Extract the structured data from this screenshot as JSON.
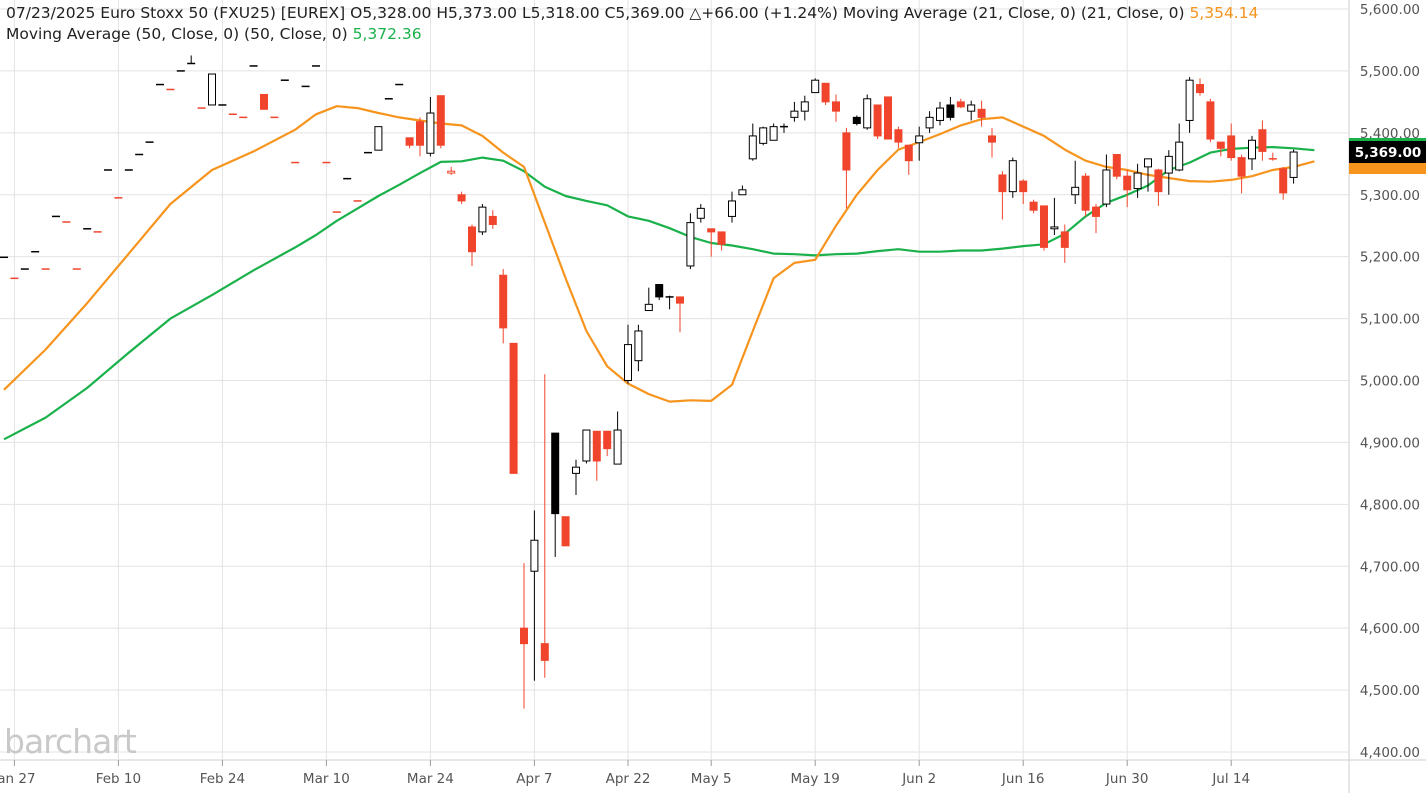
{
  "header": {
    "date": "07/23/2025",
    "instrument": "Euro Stoxx 50 (FXU25) [EUREX]",
    "open_label": "O",
    "open": "5,328.00",
    "high_label": "H",
    "high": "5,373.00",
    "low_label": "L",
    "low": "5,318.00",
    "close_label": "C",
    "close": "5,369.00",
    "change": "△+66.00 (+1.24%)",
    "ma21_label": "Moving Average (21, Close, 0)  (21, Close, 0)",
    "ma21_value": "5,354.14",
    "ma50_label": "Moving Average (50, Close, 0)  (50, Close, 0)",
    "ma50_value": "5,372.36"
  },
  "watermark": "barchart",
  "colors": {
    "up": "#000000",
    "down": "#f0452c",
    "ma21": "#f7941d",
    "ma50": "#1ab14b",
    "grid": "#e3e3e3"
  },
  "chart_data": {
    "type": "candlestick",
    "ylim": [
      4400,
      5600
    ],
    "y_ticks": [
      "4,400.00",
      "4,500.00",
      "4,600.00",
      "4,700.00",
      "4,800.00",
      "4,900.00",
      "5,000.00",
      "5,100.00",
      "5,200.00",
      "5,300.00",
      "5,400.00",
      "5,500.00",
      "5,600.00"
    ],
    "x_ticks": [
      {
        "label": "Jan 27",
        "i": 1
      },
      {
        "label": "Feb 10",
        "i": 11
      },
      {
        "label": "Feb 24",
        "i": 21
      },
      {
        "label": "Mar 10",
        "i": 31
      },
      {
        "label": "Mar 24",
        "i": 41
      },
      {
        "label": "Apr 7",
        "i": 51
      },
      {
        "label": "Apr 22",
        "i": 60
      },
      {
        "label": "May 5",
        "i": 68
      },
      {
        "label": "May 19",
        "i": 78
      },
      {
        "label": "Jun 2",
        "i": 88
      },
      {
        "label": "Jun 16",
        "i": 98
      },
      {
        "label": "Jun 30",
        "i": 108
      },
      {
        "label": "Jul 14",
        "i": 118
      }
    ],
    "last_price_label": "5,369.00",
    "candles": [
      {
        "o": 5199,
        "h": 5199,
        "l": 5199,
        "c": 5199,
        "d": "up"
      },
      {
        "o": 5165,
        "h": 5165,
        "l": 5165,
        "c": 5165,
        "d": "down"
      },
      {
        "o": 5180,
        "h": 5180,
        "l": 5180,
        "c": 5180,
        "d": "up"
      },
      {
        "o": 5208,
        "h": 5208,
        "l": 5208,
        "c": 5208,
        "d": "up"
      },
      {
        "o": 5180,
        "h": 5180,
        "l": 5180,
        "c": 5180,
        "d": "down"
      },
      {
        "o": 5265,
        "h": 5265,
        "l": 5265,
        "c": 5265,
        "d": "up"
      },
      {
        "o": 5256,
        "h": 5256,
        "l": 5256,
        "c": 5256,
        "d": "down"
      },
      {
        "o": 5180,
        "h": 5180,
        "l": 5180,
        "c": 5180,
        "d": "down"
      },
      {
        "o": 5245,
        "h": 5245,
        "l": 5245,
        "c": 5245,
        "d": "up"
      },
      {
        "o": 5240,
        "h": 5240,
        "l": 5240,
        "c": 5240,
        "d": "down"
      },
      {
        "o": 5340,
        "h": 5340,
        "l": 5340,
        "c": 5340,
        "d": "up"
      },
      {
        "o": 5295,
        "h": 5295,
        "l": 5295,
        "c": 5295,
        "d": "down"
      },
      {
        "o": 5340,
        "h": 5340,
        "l": 5340,
        "c": 5340,
        "d": "up"
      },
      {
        "o": 5365,
        "h": 5365,
        "l": 5365,
        "c": 5365,
        "d": "up"
      },
      {
        "o": 5385,
        "h": 5385,
        "l": 5385,
        "c": 5385,
        "d": "up"
      },
      {
        "o": 5478,
        "h": 5478,
        "l": 5478,
        "c": 5478,
        "d": "up"
      },
      {
        "o": 5470,
        "h": 5470,
        "l": 5470,
        "c": 5470,
        "d": "down"
      },
      {
        "o": 5500,
        "h": 5500,
        "l": 5500,
        "c": 5500,
        "d": "up"
      },
      {
        "o": 5512,
        "h": 5525,
        "l": 5512,
        "c": 5512,
        "d": "up"
      },
      {
        "o": 5440,
        "h": 5440,
        "l": 5440,
        "c": 5440,
        "d": "down"
      },
      {
        "o": 5445,
        "h": 5495,
        "l": 5445,
        "c": 5495,
        "d": "up"
      },
      {
        "o": 5445,
        "h": 5445,
        "l": 5445,
        "c": 5445,
        "d": "up"
      },
      {
        "o": 5430,
        "h": 5430,
        "l": 5430,
        "c": 5430,
        "d": "down"
      },
      {
        "o": 5425,
        "h": 5425,
        "l": 5425,
        "c": 5425,
        "d": "down"
      },
      {
        "o": 5508,
        "h": 5508,
        "l": 5508,
        "c": 5508,
        "d": "up"
      },
      {
        "o": 5462,
        "h": 5462,
        "l": 5438,
        "c": 5438,
        "d": "down"
      },
      {
        "o": 5425,
        "h": 5425,
        "l": 5425,
        "c": 5425,
        "d": "down"
      },
      {
        "o": 5485,
        "h": 5485,
        "l": 5485,
        "c": 5485,
        "d": "up"
      },
      {
        "o": 5352,
        "h": 5352,
        "l": 5352,
        "c": 5352,
        "d": "down"
      },
      {
        "o": 5475,
        "h": 5475,
        "l": 5475,
        "c": 5475,
        "d": "up"
      },
      {
        "o": 5508,
        "h": 5508,
        "l": 5508,
        "c": 5508,
        "d": "up"
      },
      {
        "o": 5352,
        "h": 5352,
        "l": 5352,
        "c": 5352,
        "d": "down"
      },
      {
        "o": 5272,
        "h": 5272,
        "l": 5272,
        "c": 5272,
        "d": "down"
      },
      {
        "o": 5326,
        "h": 5326,
        "l": 5326,
        "c": 5326,
        "d": "up"
      },
      {
        "o": 5290,
        "h": 5290,
        "l": 5290,
        "c": 5290,
        "d": "down"
      },
      {
        "o": 5368,
        "h": 5368,
        "l": 5368,
        "c": 5368,
        "d": "up"
      },
      {
        "o": 5372,
        "h": 5410,
        "l": 5372,
        "c": 5410,
        "d": "up"
      },
      {
        "o": 5455,
        "h": 5455,
        "l": 5455,
        "c": 5455,
        "d": "up"
      },
      {
        "o": 5478,
        "h": 5478,
        "l": 5478,
        "c": 5478,
        "d": "up"
      },
      {
        "o": 5392,
        "h": 5392,
        "l": 5375,
        "c": 5380,
        "d": "down"
      },
      {
        "o": 5418,
        "h": 5425,
        "l": 5362,
        "c": 5380,
        "d": "down"
      },
      {
        "o": 5367,
        "h": 5458,
        "l": 5362,
        "c": 5432,
        "d": "up"
      },
      {
        "o": 5460,
        "h": 5460,
        "l": 5375,
        "c": 5380,
        "d": "down"
      },
      {
        "o": 5335,
        "h": 5345,
        "l": 5332,
        "c": 5338,
        "d": "down"
      },
      {
        "o": 5300,
        "h": 5305,
        "l": 5285,
        "c": 5290,
        "d": "down"
      },
      {
        "o": 5248,
        "h": 5252,
        "l": 5185,
        "c": 5208,
        "d": "down"
      },
      {
        "o": 5240,
        "h": 5285,
        "l": 5235,
        "c": 5280,
        "d": "up"
      },
      {
        "o": 5265,
        "h": 5275,
        "l": 5245,
        "c": 5252,
        "d": "down"
      },
      {
        "o": 5170,
        "h": 5180,
        "l": 5060,
        "c": 5085,
        "d": "down"
      },
      {
        "o": 5060,
        "h": 5060,
        "l": 4850,
        "c": 4850,
        "d": "down"
      },
      {
        "o": 4600,
        "h": 4705,
        "l": 4470,
        "c": 4575,
        "d": "down"
      },
      {
        "o": 4692,
        "h": 4790,
        "l": 4515,
        "c": 4742,
        "d": "up"
      },
      {
        "o": 4575,
        "h": 5010,
        "l": 4520,
        "c": 4548,
        "d": "down"
      },
      {
        "o": 4915,
        "h": 4915,
        "l": 4715,
        "c": 4785,
        "d": "up"
      },
      {
        "o": 4780,
        "h": 4780,
        "l": 4733,
        "c": 4733,
        "d": "down"
      },
      {
        "o": 4850,
        "h": 4872,
        "l": 4815,
        "c": 4860,
        "d": "up"
      },
      {
        "o": 4870,
        "h": 4920,
        "l": 4866,
        "c": 4920,
        "d": "up"
      },
      {
        "o": 4918,
        "h": 4918,
        "l": 4838,
        "c": 4870,
        "d": "down"
      },
      {
        "o": 4918,
        "h": 4918,
        "l": 4878,
        "c": 4890,
        "d": "down"
      },
      {
        "o": 4865,
        "h": 4950,
        "l": 4865,
        "c": 4920,
        "d": "up"
      },
      {
        "o": 5000,
        "h": 5090,
        "l": 4995,
        "c": 5058,
        "d": "up"
      },
      {
        "o": 5032,
        "h": 5090,
        "l": 5015,
        "c": 5080,
        "d": "up"
      },
      {
        "o": 5113,
        "h": 5150,
        "l": 5113,
        "c": 5123,
        "d": "up"
      },
      {
        "o": 5155,
        "h": 5155,
        "l": 5130,
        "c": 5135,
        "d": "up"
      },
      {
        "o": 5135,
        "h": 5137,
        "l": 5115,
        "c": 5135,
        "d": "up"
      },
      {
        "o": 5135,
        "h": 5135,
        "l": 5078,
        "c": 5125,
        "d": "down"
      },
      {
        "o": 5185,
        "h": 5270,
        "l": 5180,
        "c": 5255,
        "d": "up"
      },
      {
        "o": 5262,
        "h": 5285,
        "l": 5255,
        "c": 5278,
        "d": "up"
      },
      {
        "o": 5245,
        "h": 5245,
        "l": 5200,
        "c": 5240,
        "d": "down"
      },
      {
        "o": 5240,
        "h": 5240,
        "l": 5210,
        "c": 5220,
        "d": "down"
      },
      {
        "o": 5265,
        "h": 5305,
        "l": 5255,
        "c": 5290,
        "d": "up"
      },
      {
        "o": 5300,
        "h": 5315,
        "l": 5300,
        "c": 5308,
        "d": "up"
      },
      {
        "o": 5358,
        "h": 5415,
        "l": 5355,
        "c": 5395,
        "d": "up"
      },
      {
        "o": 5383,
        "h": 5410,
        "l": 5380,
        "c": 5408,
        "d": "up"
      },
      {
        "o": 5388,
        "h": 5415,
        "l": 5388,
        "c": 5410,
        "d": "up"
      },
      {
        "o": 5410,
        "h": 5415,
        "l": 5400,
        "c": 5410,
        "d": "up"
      },
      {
        "o": 5425,
        "h": 5450,
        "l": 5418,
        "c": 5435,
        "d": "up"
      },
      {
        "o": 5435,
        "h": 5460,
        "l": 5420,
        "c": 5450,
        "d": "up"
      },
      {
        "o": 5465,
        "h": 5488,
        "l": 5465,
        "c": 5485,
        "d": "up"
      },
      {
        "o": 5480,
        "h": 5480,
        "l": 5445,
        "c": 5450,
        "d": "down"
      },
      {
        "o": 5450,
        "h": 5462,
        "l": 5418,
        "c": 5435,
        "d": "down"
      },
      {
        "o": 5400,
        "h": 5408,
        "l": 5278,
        "c": 5340,
        "d": "down"
      },
      {
        "o": 5425,
        "h": 5428,
        "l": 5412,
        "c": 5415,
        "d": "up"
      },
      {
        "o": 5408,
        "h": 5462,
        "l": 5405,
        "c": 5455,
        "d": "up"
      },
      {
        "o": 5445,
        "h": 5445,
        "l": 5390,
        "c": 5395,
        "d": "down"
      },
      {
        "o": 5458,
        "h": 5458,
        "l": 5390,
        "c": 5390,
        "d": "down"
      },
      {
        "o": 5405,
        "h": 5410,
        "l": 5375,
        "c": 5385,
        "d": "down"
      },
      {
        "o": 5380,
        "h": 5380,
        "l": 5332,
        "c": 5355,
        "d": "down"
      },
      {
        "o": 5384,
        "h": 5410,
        "l": 5355,
        "c": 5395,
        "d": "up"
      },
      {
        "o": 5408,
        "h": 5435,
        "l": 5400,
        "c": 5425,
        "d": "up"
      },
      {
        "o": 5420,
        "h": 5450,
        "l": 5412,
        "c": 5440,
        "d": "up"
      },
      {
        "o": 5445,
        "h": 5458,
        "l": 5420,
        "c": 5425,
        "d": "up"
      },
      {
        "o": 5450,
        "h": 5455,
        "l": 5440,
        "c": 5442,
        "d": "down"
      },
      {
        "o": 5435,
        "h": 5452,
        "l": 5420,
        "c": 5445,
        "d": "up"
      },
      {
        "o": 5438,
        "h": 5452,
        "l": 5410,
        "c": 5425,
        "d": "down"
      },
      {
        "o": 5395,
        "h": 5408,
        "l": 5360,
        "c": 5385,
        "d": "down"
      },
      {
        "o": 5332,
        "h": 5338,
        "l": 5260,
        "c": 5305,
        "d": "down"
      },
      {
        "o": 5305,
        "h": 5360,
        "l": 5295,
        "c": 5355,
        "d": "up"
      },
      {
        "o": 5322,
        "h": 5325,
        "l": 5285,
        "c": 5305,
        "d": "down"
      },
      {
        "o": 5288,
        "h": 5292,
        "l": 5270,
        "c": 5275,
        "d": "down"
      },
      {
        "o": 5282,
        "h": 5282,
        "l": 5210,
        "c": 5215,
        "d": "down"
      },
      {
        "o": 5245,
        "h": 5295,
        "l": 5235,
        "c": 5248,
        "d": "up"
      },
      {
        "o": 5240,
        "h": 5252,
        "l": 5190,
        "c": 5215,
        "d": "down"
      },
      {
        "o": 5300,
        "h": 5355,
        "l": 5285,
        "c": 5312,
        "d": "up"
      },
      {
        "o": 5330,
        "h": 5335,
        "l": 5265,
        "c": 5275,
        "d": "down"
      },
      {
        "o": 5280,
        "h": 5285,
        "l": 5238,
        "c": 5265,
        "d": "down"
      },
      {
        "o": 5285,
        "h": 5365,
        "l": 5280,
        "c": 5340,
        "d": "up"
      },
      {
        "o": 5365,
        "h": 5365,
        "l": 5325,
        "c": 5330,
        "d": "down"
      },
      {
        "o": 5330,
        "h": 5340,
        "l": 5280,
        "c": 5308,
        "d": "down"
      },
      {
        "o": 5310,
        "h": 5350,
        "l": 5295,
        "c": 5335,
        "d": "up"
      },
      {
        "o": 5345,
        "h": 5358,
        "l": 5305,
        "c": 5358,
        "d": "up"
      },
      {
        "o": 5340,
        "h": 5342,
        "l": 5282,
        "c": 5305,
        "d": "down"
      },
      {
        "o": 5335,
        "h": 5372,
        "l": 5300,
        "c": 5362,
        "d": "up"
      },
      {
        "o": 5340,
        "h": 5415,
        "l": 5338,
        "c": 5385,
        "d": "up"
      },
      {
        "o": 5420,
        "h": 5490,
        "l": 5400,
        "c": 5485,
        "d": "up"
      },
      {
        "o": 5478,
        "h": 5488,
        "l": 5460,
        "c": 5465,
        "d": "down"
      },
      {
        "o": 5450,
        "h": 5455,
        "l": 5385,
        "c": 5390,
        "d": "down"
      },
      {
        "o": 5385,
        "h": 5385,
        "l": 5362,
        "c": 5375,
        "d": "down"
      },
      {
        "o": 5395,
        "h": 5415,
        "l": 5355,
        "c": 5360,
        "d": "down"
      },
      {
        "o": 5360,
        "h": 5365,
        "l": 5302,
        "c": 5330,
        "d": "down"
      },
      {
        "o": 5358,
        "h": 5395,
        "l": 5340,
        "c": 5388,
        "d": "up"
      },
      {
        "o": 5405,
        "h": 5420,
        "l": 5355,
        "c": 5370,
        "d": "down"
      },
      {
        "o": 5358,
        "h": 5368,
        "l": 5355,
        "c": 5358,
        "d": "down"
      },
      {
        "o": 5342,
        "h": 5345,
        "l": 5292,
        "c": 5303,
        "d": "down"
      },
      {
        "o": 5328,
        "h": 5373,
        "l": 5318,
        "c": 5369,
        "d": "up"
      }
    ],
    "series": [
      {
        "name": "Moving Average (21, Close, 0)",
        "color": "#f7941d",
        "x": [
          0,
          4,
          8,
          12,
          16,
          20,
          24,
          28,
          30,
          32,
          34,
          36,
          38,
          40,
          42,
          44,
          46,
          48,
          50,
          52,
          54,
          56,
          58,
          60,
          62,
          64,
          66,
          68,
          70,
          72,
          74,
          76,
          78,
          80,
          82,
          84,
          86,
          88,
          90,
          92,
          94,
          96,
          98,
          100,
          102,
          104,
          106,
          108,
          110,
          112,
          114,
          116,
          118,
          120,
          122,
          124,
          126
        ],
        "y": [
          4985,
          5050,
          5125,
          5205,
          5285,
          5340,
          5370,
          5405,
          5430,
          5443,
          5440,
          5432,
          5425,
          5420,
          5415,
          5412,
          5395,
          5368,
          5345,
          5255,
          5165,
          5080,
          5023,
          4995,
          4978,
          4966,
          4968,
          4967,
          4993,
          5080,
          5165,
          5190,
          5195,
          5250,
          5300,
          5340,
          5373,
          5385,
          5398,
          5412,
          5422,
          5425,
          5410,
          5395,
          5373,
          5355,
          5345,
          5340,
          5332,
          5327,
          5322,
          5321,
          5324,
          5330,
          5340,
          5345,
          5354
        ]
      },
      {
        "name": "Moving Average (50, Close, 0)",
        "color": "#1ab14b",
        "x": [
          0,
          4,
          8,
          12,
          16,
          20,
          24,
          28,
          30,
          32,
          34,
          36,
          38,
          40,
          42,
          44,
          46,
          48,
          50,
          52,
          54,
          56,
          58,
          60,
          62,
          64,
          66,
          68,
          70,
          72,
          74,
          76,
          78,
          80,
          82,
          84,
          86,
          88,
          90,
          92,
          94,
          96,
          98,
          100,
          102,
          104,
          106,
          108,
          110,
          112,
          114,
          116,
          118,
          120,
          122,
          124,
          126
        ],
        "y": [
          4905,
          4940,
          4988,
          5045,
          5100,
          5138,
          5178,
          5215,
          5235,
          5258,
          5278,
          5298,
          5316,
          5335,
          5353,
          5354,
          5360,
          5355,
          5338,
          5313,
          5298,
          5290,
          5283,
          5265,
          5258,
          5246,
          5232,
          5222,
          5218,
          5212,
          5205,
          5204,
          5202,
          5204,
          5205,
          5209,
          5212,
          5208,
          5208,
          5210,
          5210,
          5213,
          5217,
          5220,
          5237,
          5265,
          5287,
          5300,
          5315,
          5340,
          5352,
          5368,
          5374,
          5376,
          5377,
          5375,
          5372
        ]
      }
    ]
  }
}
